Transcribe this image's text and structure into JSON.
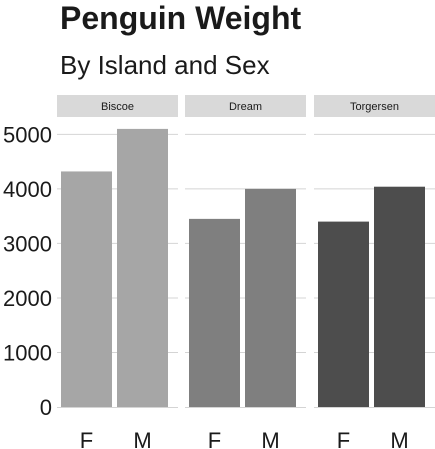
{
  "chart_data": {
    "type": "bar",
    "title": "Penguin Weight",
    "subtitle": "By Island and Sex",
    "xlabel": "",
    "ylabel": "",
    "ylim": [
      0,
      5300
    ],
    "yticks": [
      0,
      1000,
      2000,
      3000,
      4000,
      5000
    ],
    "grid": true,
    "legend": "none",
    "facets": [
      {
        "label": "Biscoe",
        "color": "#a6a6a6",
        "categories": [
          "F",
          "M"
        ],
        "values": [
          4320,
          5100
        ]
      },
      {
        "label": "Dream",
        "color": "#7f7f7f",
        "categories": [
          "F",
          "M"
        ],
        "values": [
          3450,
          4000
        ]
      },
      {
        "label": "Torgersen",
        "color": "#4d4d4d",
        "categories": [
          "F",
          "M"
        ],
        "values": [
          3400,
          4040
        ]
      }
    ]
  }
}
